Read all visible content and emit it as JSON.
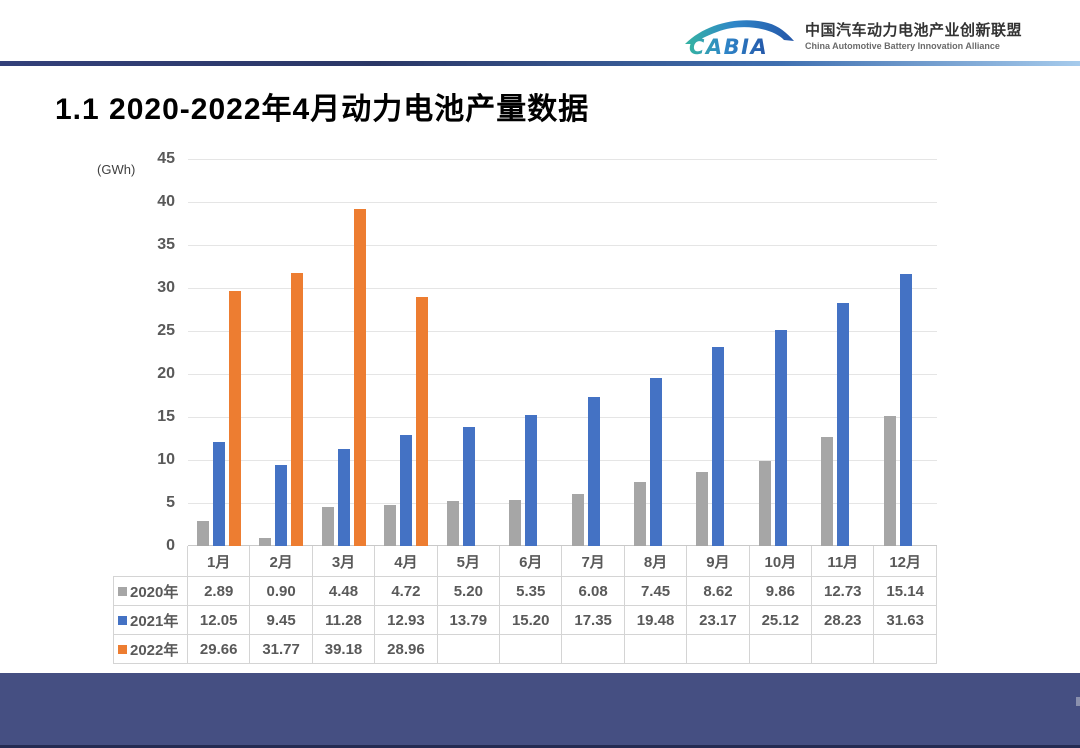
{
  "logo": {
    "brand": "CABIA",
    "title_cn": "中国汽车动力电池产业创新联盟",
    "subtitle_en": "China Automotive Battery Innovation Alliance"
  },
  "title": "1.1 2020-2022年4月动力电池产量数据",
  "chart_data": {
    "type": "bar",
    "title": "1.1 2020-2022年4月动力电池产量数据",
    "unit_label": "(GWh)",
    "categories": [
      "1月",
      "2月",
      "3月",
      "4月",
      "5月",
      "6月",
      "7月",
      "8月",
      "9月",
      "10月",
      "11月",
      "12月"
    ],
    "series": [
      {
        "name": "2020年",
        "color": "#a6a6a6",
        "values": [
          2.89,
          0.9,
          4.48,
          4.72,
          5.2,
          5.35,
          6.08,
          7.45,
          8.62,
          9.86,
          12.73,
          15.14
        ]
      },
      {
        "name": "2021年",
        "color": "#4472c4",
        "values": [
          12.05,
          9.45,
          11.28,
          12.93,
          13.79,
          15.2,
          17.35,
          19.48,
          23.17,
          25.12,
          28.23,
          31.63
        ]
      },
      {
        "name": "2022年",
        "color": "#ed7d31",
        "values": [
          29.66,
          31.77,
          39.18,
          28.96,
          null,
          null,
          null,
          null,
          null,
          null,
          null,
          null
        ]
      }
    ],
    "ylim": [
      0,
      45
    ],
    "ytick_step": 5,
    "grid": true,
    "legend_position": "table-left",
    "data_table_visible": true
  },
  "theme": {
    "divider_gradient": [
      "#33407a",
      "#a6cbec"
    ],
    "footer_color": "#454f82",
    "footer_strip_color": "#242b52",
    "grid_color": "#e5e5e5",
    "axis_text_color": "#595959"
  }
}
